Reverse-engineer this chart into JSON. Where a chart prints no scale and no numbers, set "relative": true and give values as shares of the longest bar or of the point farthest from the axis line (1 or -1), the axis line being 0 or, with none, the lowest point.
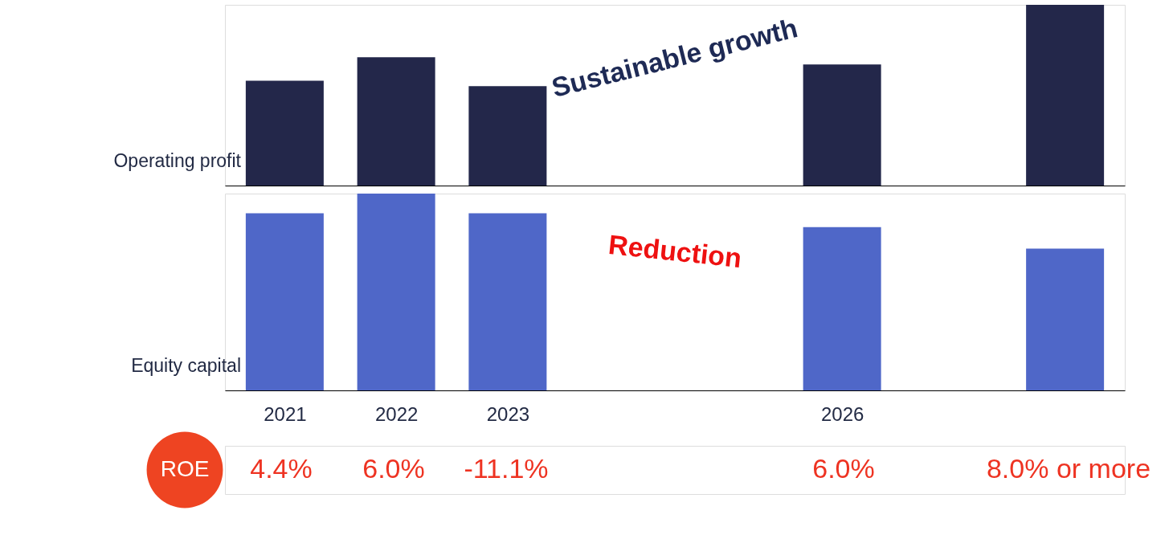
{
  "chart_data": [
    {
      "type": "bar",
      "relative": true,
      "categories": [
        "2021",
        "2022",
        "2023",
        null,
        null,
        "2026",
        null,
        null
      ],
      "tick_labels": false,
      "series": [
        {
          "name": "Operating profit",
          "color": "#23274a",
          "values": [
            0.58,
            0.71,
            0.55,
            null,
            null,
            0.67,
            null,
            1
          ]
        }
      ],
      "annotations": [
        "Sustainable growth"
      ]
    },
    {
      "type": "bar",
      "relative": true,
      "categories": [
        "2021",
        "2022",
        "2023",
        null,
        null,
        "2026",
        null,
        null
      ],
      "tick_labels": "x",
      "series": [
        {
          "name": "Equity capital",
          "color": "#4f67c8",
          "values": [
            0.9,
            1,
            0.9,
            null,
            null,
            0.83,
            null,
            0.72
          ]
        }
      ],
      "annotations": [
        "Reduction"
      ]
    },
    {
      "type": "other",
      "title": "ROE",
      "annotations": [
        "4.4%",
        "6.0%",
        "-11.1%",
        "6.0%",
        "8.0% or more"
      ]
    }
  ]
}
